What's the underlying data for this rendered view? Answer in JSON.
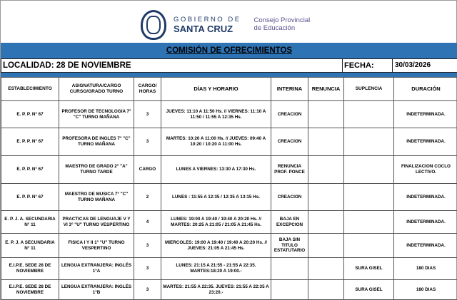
{
  "header": {
    "gob_line1": "GOBIERNO DE",
    "gob_line2": "SANTA CRUZ",
    "cpe_line1": "Consejo Provincial",
    "cpe_line2": "de Educación",
    "title": "COMISIÓN DE OFRECIMIENTOS",
    "localidad": "LOCALIDAD: 28 DE NOVIEMBRE",
    "fecha_label": "FECHA:",
    "fecha": "30/03/2026",
    "accent": "#2e74b5"
  },
  "columns": [
    "ESTABLECIMIENTO",
    "ASIGNATURA/CARGO CURSO/GRADO  TURNO",
    "CARGO/ HORAS",
    "DÍAS Y HORARIO",
    "INTERINA",
    "RENUNCIA",
    "SUPLENCIA",
    "DURACIÓN"
  ],
  "rows": [
    [
      "E. P. P. N° 67",
      "PROFESOR DE TECNOLOGIA 7° \"C\" TURNO MAÑANA",
      "3",
      "JUEVES: 11:10 A 11:50 Hs. // VIERNES: 11:10 A 11:50 / 11:55 A 12:35 Hs.",
      "CREACION",
      "",
      "",
      "INDETERMINADA."
    ],
    [
      "E. P. P. N° 67",
      "PROFESORA DE INGLES 7° \"C\" TURNO MAÑANA",
      "3",
      "MARTES: 10:20 A 11:00 Hs. // JUEVES: 09:40 A 10:20 / 10:20 A 11:00 Hs.",
      "CREACION",
      "",
      "",
      "INDETERMINADA."
    ],
    [
      "E. P. P. N° 67",
      "MAESTRO DE GRADO 2° \"A\" TURNO TARDE",
      "CARGO",
      "LUNES A VIERNES: 13:30 A 17:30 Hs.",
      "RENUNCIA PROF. PONCE",
      "",
      "",
      "FINALIZACION COCLO LECTIVO."
    ],
    [
      "E. P. P. N° 67",
      "MAESTRO DE MUSICA 7° \"C\" TURNO MAÑANA",
      "2",
      "LUNES : 11:55 A 12:35 / 12:35 A 13:15 Hs.",
      "CREACION",
      "",
      "",
      "INDETERMINADA."
    ],
    [
      "E. P. J. A. SECUNDARIA N° 11",
      "PRACTICAS DE LENGUAJE V Y VI 3° \"U\" TURNO VESPERTINO",
      "4",
      "LUNES: 19:00 A 19:40 / 19:40 A 20:20 Hs. // MARTES: 20:25 A 21:05 / 21:05 A 21:45 Hs.",
      "BAJA EN EXCEPCION",
      "",
      "",
      "INDETERMINADA."
    ],
    [
      "E. P. J. A SECUNDARIA N° 11",
      "FISICA I Y II 1° \"U\" TURNO VESPERTINO",
      "3",
      "MIERCOLES: 19:00 A 19:40 / 19:40 A 20:20 Hs. // JUEVES: 21:05 A 21:45 Hs.",
      "BAJA SIN TITULO ESTATUTARIO",
      "",
      "",
      "INDETERMINADA."
    ],
    [
      "E.I.P.E. SEDE 28 DE NOVIEMBRE",
      "LENGUA EXTRANJERA: INGLÉS 1°A",
      "3",
      "LUNES: 21:15 A 21:55 - 21:55 A 22:35. MARTES:18:20 A 19:00.-",
      "",
      "",
      "SURA GISEL",
      "180 DIAS"
    ],
    [
      "E.I.P.E. SEDE 28 DE NOVIEMBRE",
      "LENGUA EXTRANJERA: INGLÉS 1°B",
      "3",
      "MARTES: 21:55 A 22:35. JUEVES: 21:55 A 22:35 A 23:20.-",
      "",
      "",
      "SURA GISEL",
      "180 DIAS"
    ]
  ]
}
